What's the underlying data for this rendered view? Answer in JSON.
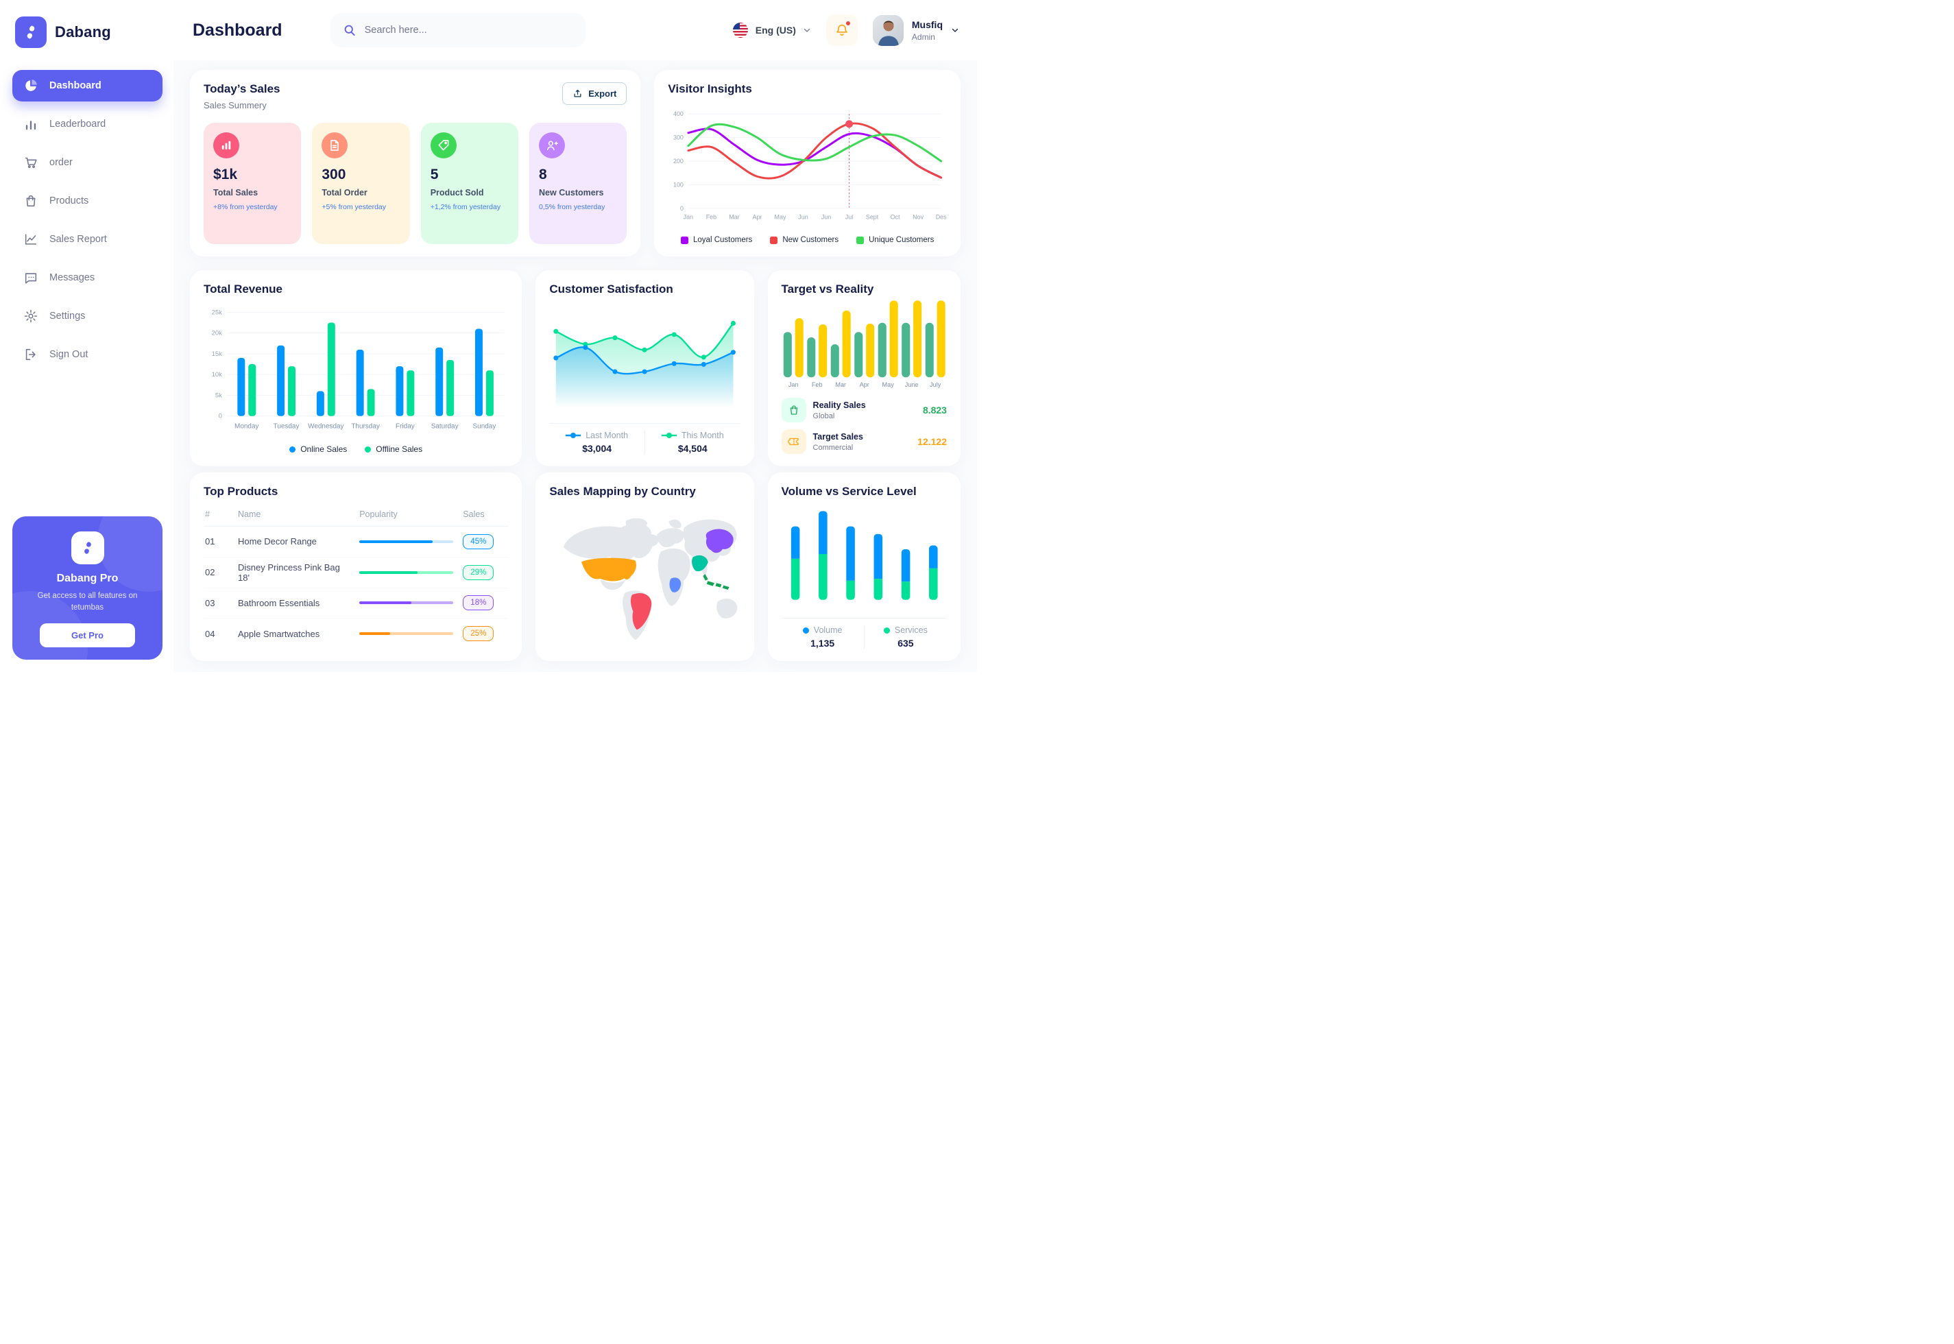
{
  "app": {
    "name": "Dabang",
    "accent_color": "#5D5FEF"
  },
  "header": {
    "title": "Dashboard",
    "search_placeholder": "Search here...",
    "language": "Eng (US)",
    "notifications": {
      "has_unread": true
    },
    "user": {
      "name": "Musfiq",
      "role": "Admin"
    }
  },
  "sidebar": {
    "items": [
      {
        "label": "Dashboard",
        "icon": "dashboard",
        "active": true
      },
      {
        "label": "Leaderboard",
        "icon": "leaderboard",
        "active": false
      },
      {
        "label": "order",
        "icon": "cart",
        "active": false
      },
      {
        "label": "Products",
        "icon": "bag",
        "active": false
      },
      {
        "label": "Sales Report",
        "icon": "line-chart",
        "active": false
      },
      {
        "label": "Messages",
        "icon": "message",
        "active": false
      },
      {
        "label": "Settings",
        "icon": "gear",
        "active": false
      },
      {
        "label": "Sign Out",
        "icon": "sign-out",
        "active": false
      }
    ],
    "pro": {
      "title": "Dabang Pro",
      "subtitle": "Get access to all features on tetumbas",
      "button": "Get Pro"
    }
  },
  "today_sales": {
    "title": "Today’s Sales",
    "subtitle": "Sales Summery",
    "export_label": "Export",
    "cards": [
      {
        "value": "$1k",
        "label": "Total Sales",
        "delta": "+8% from yesterday",
        "bg": "#FFE2E5",
        "icon_bg": "#FA5A7D",
        "icon": "bar-chart"
      },
      {
        "value": "300",
        "label": "Total Order",
        "delta": "+5% from yesterday",
        "bg": "#FFF4DE",
        "icon_bg": "#FF947A",
        "icon": "file"
      },
      {
        "value": "5",
        "label": "Product Sold",
        "delta": "+1,2% from yesterday",
        "bg": "#DCFCE7",
        "icon_bg": "#3CD856",
        "icon": "tag"
      },
      {
        "value": "8",
        "label": "New Customers",
        "delta": "0,5% from yesterday",
        "bg": "#F3E8FF",
        "icon_bg": "#BF83FF",
        "icon": "user-plus"
      }
    ]
  },
  "chart_data": {
    "visitor_insights": {
      "type": "line",
      "title": "Visitor Insights",
      "x": [
        "Jan",
        "Feb",
        "Mar",
        "Apr",
        "May",
        "Jun",
        "Jun",
        "Jul",
        "Sept",
        "Oct",
        "Nov",
        "Des"
      ],
      "ylim": [
        0,
        400
      ],
      "yticks": [
        0,
        100,
        200,
        300,
        400
      ],
      "series": [
        {
          "name": "Loyal Customers",
          "color": "#A700FF",
          "values": [
            320,
            335,
            270,
            205,
            185,
            200,
            260,
            315,
            305,
            255,
            180,
            130
          ]
        },
        {
          "name": "New Customers",
          "color": "#EF4444",
          "values": [
            245,
            260,
            195,
            135,
            135,
            200,
            300,
            358,
            340,
            260,
            180,
            130
          ]
        },
        {
          "name": "Unique Customers",
          "color": "#3CD856",
          "values": [
            265,
            350,
            345,
            300,
            230,
            205,
            210,
            260,
            305,
            310,
            265,
            200
          ]
        }
      ],
      "highlight": {
        "x_index": 7,
        "series": "New Customers",
        "value": 358,
        "marker_color": "#F64E60"
      }
    },
    "total_revenue": {
      "type": "bar",
      "title": "Total Revenue",
      "categories": [
        "Monday",
        "Tuesday",
        "Wednesday",
        "Thursday",
        "Friday",
        "Saturday",
        "Sunday"
      ],
      "ylim": [
        0,
        25000
      ],
      "ytick_labels": [
        "0",
        "5k",
        "10k",
        "15k",
        "20k",
        "25k"
      ],
      "series": [
        {
          "name": "Online Sales",
          "color": "#0095FF",
          "values": [
            14000,
            17000,
            6000,
            16000,
            12000,
            16500,
            21000
          ]
        },
        {
          "name": "Offline Sales",
          "color": "#00E096",
          "values": [
            12500,
            12000,
            22500,
            6500,
            11000,
            13500,
            11000
          ]
        }
      ]
    },
    "customer_satisfaction": {
      "type": "area",
      "title": "Customer Satisfaction",
      "ylim": [
        0,
        110
      ],
      "series": [
        {
          "name": "Last Month",
          "color": "#0095FF",
          "total": "$3,004",
          "values": [
            55,
            68,
            38,
            38,
            48,
            47,
            62
          ]
        },
        {
          "name": "This Month",
          "color": "#00E096",
          "total": "$4,504",
          "values": [
            88,
            72,
            80,
            65,
            84,
            56,
            98
          ]
        }
      ]
    },
    "target_vs_reality": {
      "type": "bar",
      "title": "Target vs Reality",
      "categories": [
        "Jan",
        "Feb",
        "Mar",
        "Apr",
        "May",
        "June",
        "July"
      ],
      "ylim": [
        0,
        100
      ],
      "series": [
        {
          "name": "Reality Sales",
          "tag": "Global",
          "color": "#4AB58E",
          "icon_bg": "#E2FFF3",
          "value_label": "8.823",
          "value_color": "#27AE60",
          "values": [
            59,
            52,
            43,
            59,
            71,
            71,
            71
          ]
        },
        {
          "name": "Target Sales",
          "tag": "Commercial",
          "color": "#FFCF00",
          "icon_bg": "#FFF4DE",
          "value_label": "12.122",
          "value_color": "#FFA412",
          "values": [
            77,
            69,
            87,
            70,
            100,
            100,
            100
          ]
        }
      ]
    },
    "volume_vs_service": {
      "type": "stacked-bar",
      "title": "Volume vs Service Level",
      "series": [
        {
          "name": "Volume",
          "color": "#0095FF",
          "total": "1,135",
          "values": [
            34,
            45,
            57,
            47,
            34,
            24
          ]
        },
        {
          "name": "Services",
          "color": "#00E096",
          "total": "635",
          "values": [
            43,
            48,
            20,
            22,
            19,
            33
          ]
        }
      ]
    }
  },
  "top_products": {
    "title": "Top Products",
    "columns": [
      "#",
      "Name",
      "Popularity",
      "Sales"
    ],
    "rows": [
      {
        "num": "01",
        "name": "Home Decor Range",
        "popularity_pct": 78,
        "color": "#0095FF",
        "track": "#CDE7FF",
        "sales": "45%",
        "badge_bg": "#F0F9FF"
      },
      {
        "num": "02",
        "name": "Disney Princess Pink Bag 18'",
        "popularity_pct": 62,
        "color": "#00E096",
        "track": "#8CFAC7",
        "sales": "29%",
        "badge_bg": "#F0FDF4"
      },
      {
        "num": "03",
        "name": "Bathroom Essentials",
        "popularity_pct": 55,
        "color": "#884DFF",
        "track": "#C5A8FF",
        "sales": "18%",
        "badge_bg": "#F6F0FF"
      },
      {
        "num": "04",
        "name": "Apple Smartwatches",
        "popularity_pct": 33,
        "color": "#FF8F0D",
        "track": "#FFD5A4",
        "sales": "25%",
        "badge_bg": "#FFF8EC"
      }
    ]
  },
  "sales_map": {
    "title": "Sales Mapping by Country",
    "land_color": "#E4E7EC",
    "countries": [
      {
        "name": "United States",
        "color": "#FFA412"
      },
      {
        "name": "Brazil",
        "color": "#F64E60"
      },
      {
        "name": "Saudi Arabia",
        "color": "#00C5A2"
      },
      {
        "name": "DR Congo",
        "color": "#5E8BFF"
      },
      {
        "name": "China",
        "color": "#8950FC"
      },
      {
        "name": "Indonesia",
        "color": "#12A454"
      }
    ]
  }
}
